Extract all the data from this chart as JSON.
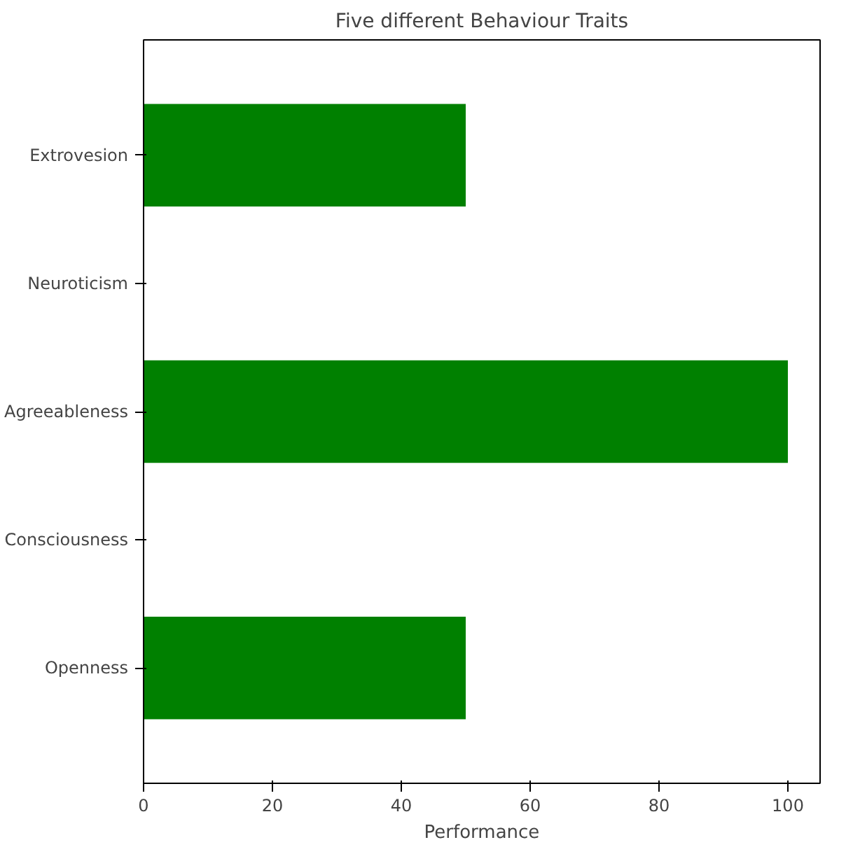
{
  "chart_data": {
    "type": "bar",
    "orientation": "horizontal",
    "title": "Five different Behaviour Traits",
    "xlabel": "Performance",
    "categories": [
      "Extrovesion",
      "Neuroticism",
      "Agreeableness",
      "Consciousness",
      "Openness"
    ],
    "values": [
      50,
      0,
      100,
      0,
      50
    ],
    "color": "#008000",
    "xlim": [
      0,
      105
    ],
    "xticks": [
      0,
      20,
      40,
      60,
      80,
      100
    ],
    "grid": false
  }
}
